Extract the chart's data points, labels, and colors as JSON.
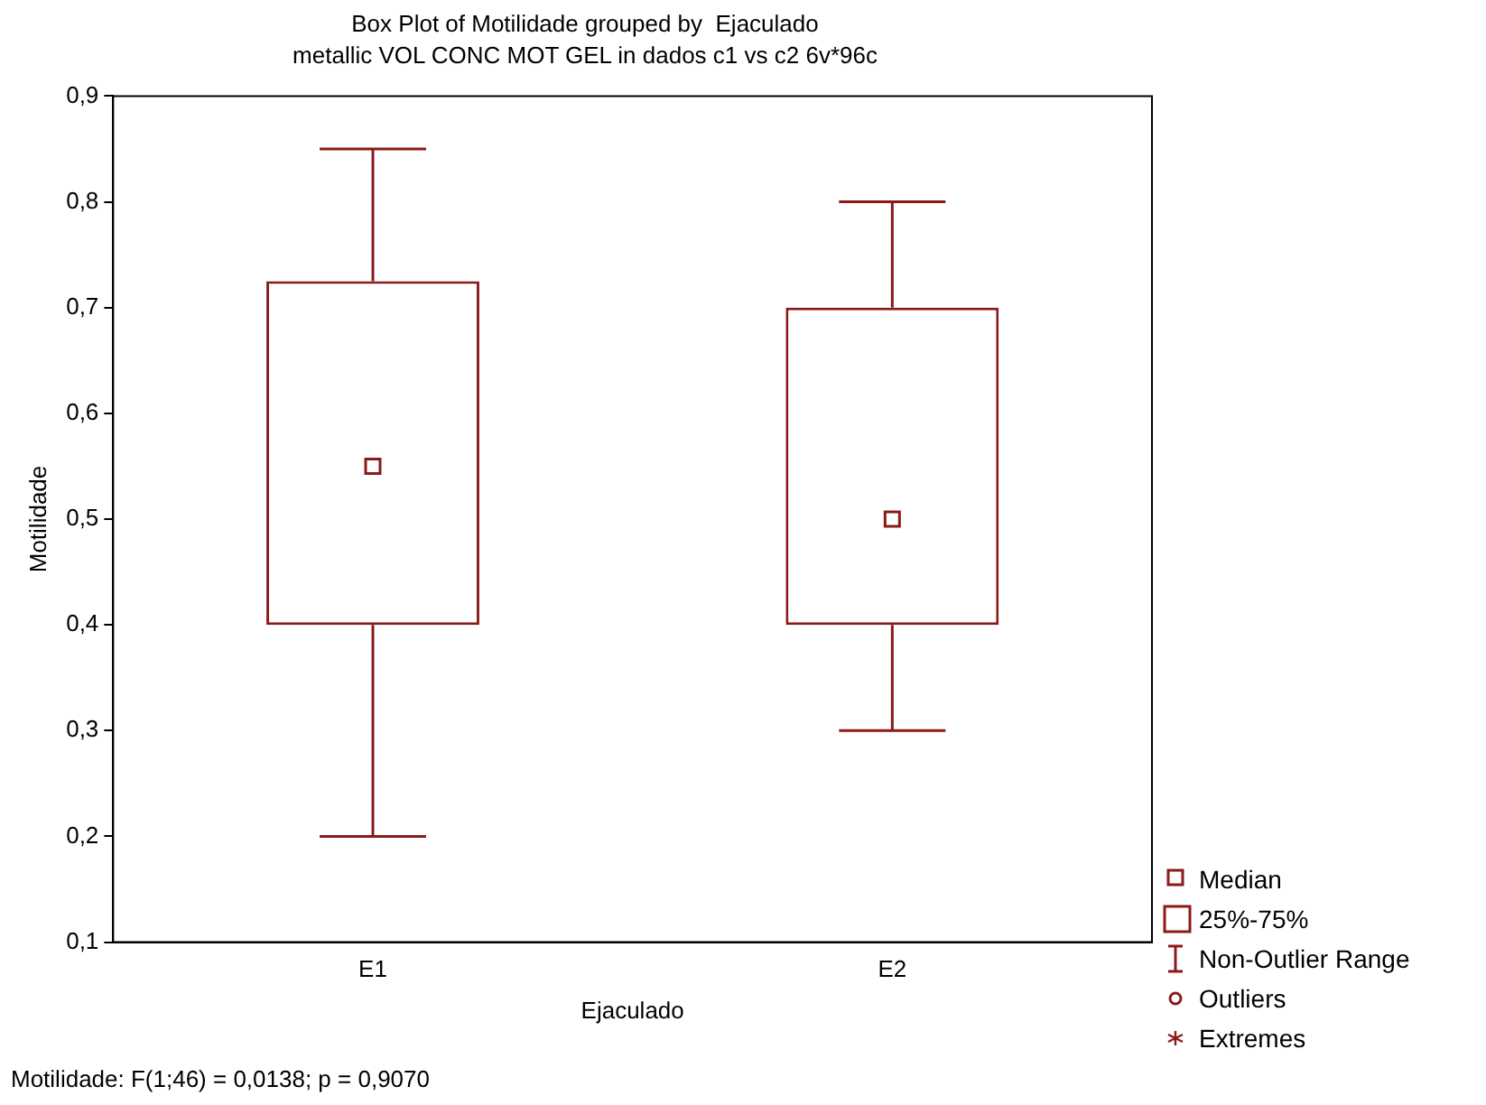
{
  "chart_data": {
    "type": "box",
    "title": "Box Plot of Motilidade grouped by  Ejaculado",
    "subtitle": "metallic VOL CONC MOT GEL in dados c1 vs c2 6v*96c",
    "xlabel": "Ejaculado",
    "ylabel": "Motilidade",
    "categories": [
      "E1",
      "E2"
    ],
    "color": "#8b1a1a",
    "boxes": [
      {
        "low": 0.2,
        "q1": 0.4,
        "median": 0.55,
        "q3": 0.725,
        "high": 0.85
      },
      {
        "low": 0.3,
        "q1": 0.4,
        "median": 0.5,
        "q3": 0.7,
        "high": 0.8
      }
    ],
    "ylim": [
      0.1,
      0.9
    ],
    "yticks": [
      {
        "value": 0.1,
        "label": "0,1"
      },
      {
        "value": 0.2,
        "label": "0,2"
      },
      {
        "value": 0.3,
        "label": "0,3"
      },
      {
        "value": 0.4,
        "label": "0,4"
      },
      {
        "value": 0.5,
        "label": "0,5"
      },
      {
        "value": 0.6,
        "label": "0,6"
      },
      {
        "value": 0.7,
        "label": "0,7"
      },
      {
        "value": 0.8,
        "label": "0,8"
      },
      {
        "value": 0.9,
        "label": "0,9"
      }
    ],
    "grid": false,
    "annotations": [
      "Median",
      "25%-75%",
      "Non-Outlier Range",
      "Outliers",
      "Extremes",
      "Motilidade:   F(1;46) = 0,0138; p = 0,9070"
    ]
  }
}
